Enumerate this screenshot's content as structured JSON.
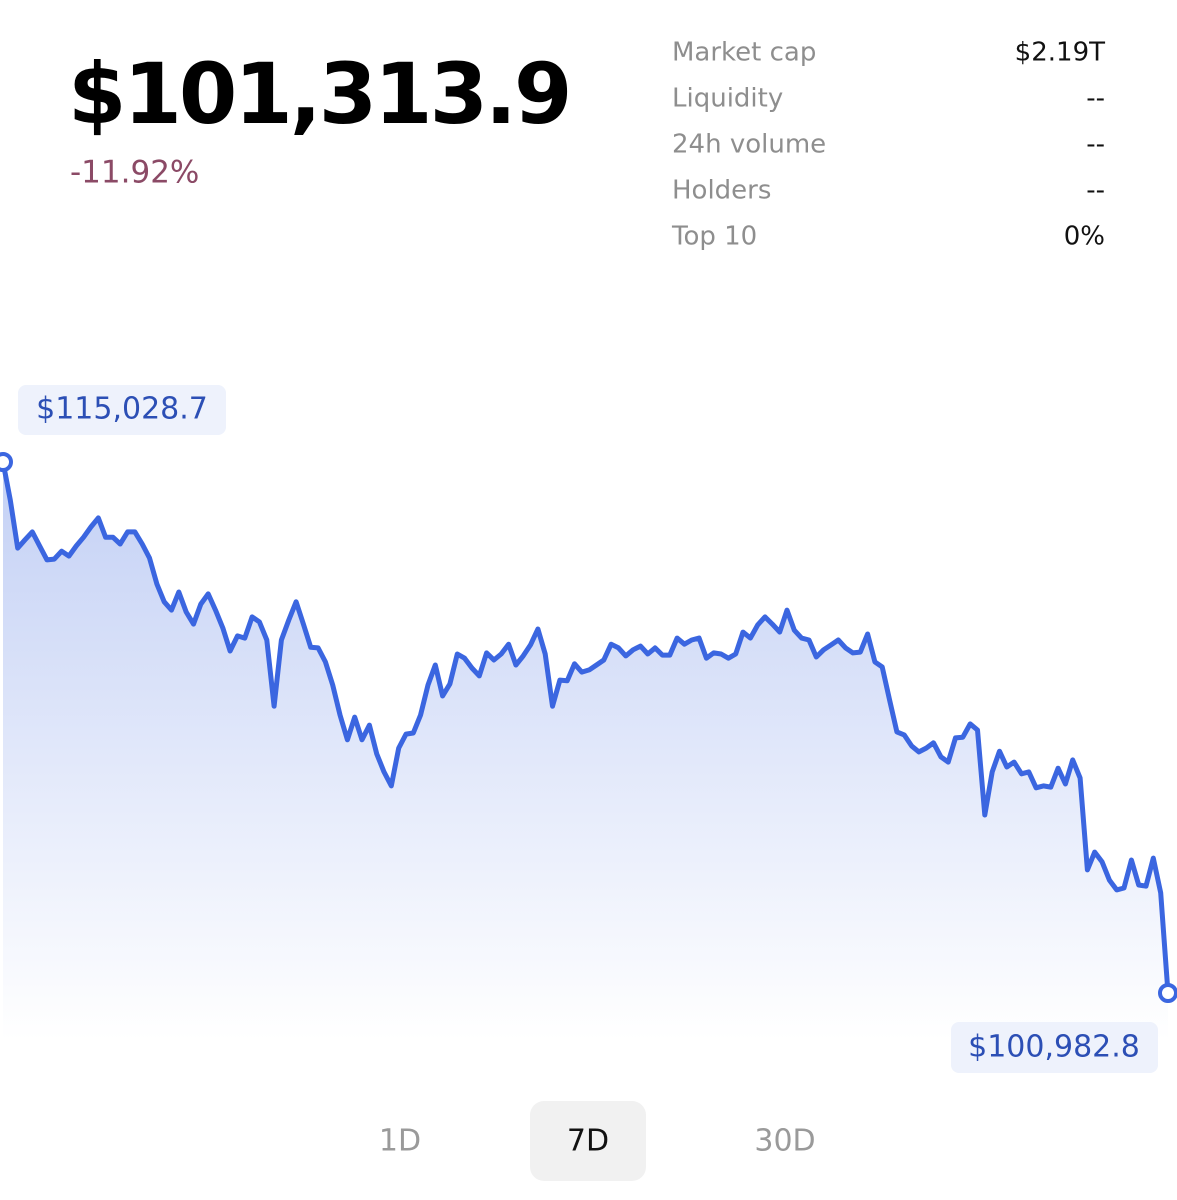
{
  "price": "$101,313.9",
  "change": "-11.92%",
  "stats": [
    {
      "label": "Market cap",
      "value": "$2.19T"
    },
    {
      "label": "Liquidity",
      "value": "--"
    },
    {
      "label": "24h volume",
      "value": "--"
    },
    {
      "label": "Holders",
      "value": "--"
    },
    {
      "label": "Top 10",
      "value": "0%"
    }
  ],
  "chart_data": {
    "type": "line",
    "color": "#3b66e0",
    "first_label": "$115,028.7",
    "last_label": "$100,982.8",
    "values": [
      115028.7,
      114020,
      112750,
      112970,
      113180,
      112810,
      112440,
      112460,
      112670,
      112540,
      112810,
      113040,
      113310,
      113550,
      113040,
      113040,
      112860,
      113180,
      113180,
      112860,
      112490,
      111800,
      111330,
      111110,
      111590,
      111060,
      110740,
      111270,
      111540,
      111110,
      110640,
      110030,
      110430,
      110370,
      110930,
      110800,
      110320,
      108570,
      110320,
      110850,
      111330,
      110740,
      110130,
      110110,
      109740,
      109130,
      108340,
      107680,
      108280,
      107680,
      108070,
      107310,
      106830,
      106460,
      107460,
      107830,
      107860,
      108340,
      109130,
      109660,
      108840,
      109160,
      109950,
      109840,
      109580,
      109370,
      109980,
      109790,
      109950,
      110210,
      109660,
      109900,
      110190,
      110610,
      109950,
      108570,
      109260,
      109240,
      109690,
      109470,
      109530,
      109660,
      109790,
      110210,
      110110,
      109900,
      110060,
      110160,
      109950,
      110110,
      109920,
      109920,
      110370,
      110210,
      110320,
      110370,
      109840,
      109980,
      109950,
      109840,
      109950,
      110530,
      110370,
      110720,
      110930,
      110740,
      110530,
      111110,
      110580,
      110370,
      110320,
      109870,
      110060,
      110190,
      110320,
      110110,
      109980,
      110000,
      110480,
      109740,
      109610,
      108730,
      107890,
      107810,
      107520,
      107360,
      107460,
      107600,
      107230,
      107090,
      107730,
      107750,
      108100,
      107940,
      105690,
      106830,
      107380,
      106960,
      107090,
      106780,
      106830,
      106410,
      106460,
      106430,
      106930,
      106510,
      107150,
      106670,
      104240,
      104710,
      104450,
      103970,
      103710,
      103760,
      104500,
      103840,
      103810,
      104550,
      103630,
      100982.8
    ]
  },
  "ranges": [
    {
      "label": "1D",
      "active": false
    },
    {
      "label": "7D",
      "active": true
    },
    {
      "label": "30D",
      "active": false
    }
  ]
}
